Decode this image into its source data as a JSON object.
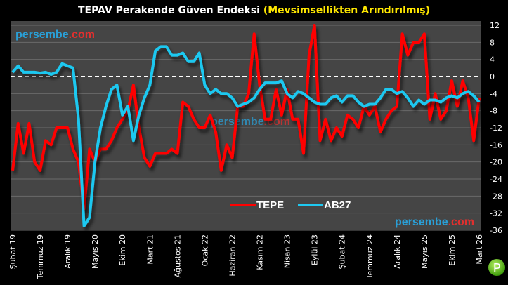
{
  "chart_data": {
    "type": "line",
    "title": "TEPAV Perakende Güven Endeksi",
    "subtitle": "(Mevsimsellikten Arındırılmış)",
    "x_tick_labels": [
      "Şubat 19",
      "Temmuz 19",
      "Aralık 19",
      "Mayıs 20",
      "Ekim 20",
      "Mart 21",
      "Ağustos 21",
      "Ocak 22",
      "Haziran 22",
      "Kasım 22",
      "Nisan 23",
      "Eylül 23",
      "Şubat 24",
      "Temmuz 24",
      "Aralık 24",
      "Mayıs 25",
      "Ekim 25",
      "Mart 26"
    ],
    "x_range": [
      "Şubat 19",
      "Mart 26"
    ],
    "ylim": [
      -36,
      12
    ],
    "y_ticks": [
      12,
      8,
      4,
      0,
      -4,
      -8,
      -12,
      -16,
      -20,
      -24,
      -28,
      -32,
      -36
    ],
    "y_axis_side": "right",
    "grid": true,
    "reference_line": 0,
    "legend_placement": "bottom-center",
    "series": [
      {
        "name": "TEPE",
        "color": "#ff0000",
        "values": [
          -22,
          -11,
          -18,
          -11,
          -20,
          -22,
          -15,
          -16,
          -12,
          -12,
          -12,
          -17,
          -20,
          -31,
          -17,
          -20,
          -17,
          -17,
          -15,
          -12,
          -10,
          -8,
          -2,
          -12,
          -19,
          -21,
          -18,
          -18,
          -18,
          -17,
          -18,
          -6,
          -7,
          -10,
          -12,
          -12,
          -9,
          -13,
          -22,
          -16,
          -19,
          -7,
          -7,
          -4,
          10,
          -2,
          -10,
          -10,
          -3,
          -9,
          -3,
          -10,
          -10,
          -18,
          5,
          12,
          -15,
          -10,
          -15,
          -12,
          -14,
          -9,
          -10,
          -12,
          -7,
          -9,
          -7,
          -13,
          -10,
          -8,
          -7,
          10,
          5,
          8,
          8,
          10,
          -10,
          -4,
          -10,
          -8,
          -1,
          -7,
          -1,
          -5,
          -15,
          -5
        ]
      },
      {
        "name": "AB27",
        "color": "#1ec8f0",
        "values": [
          1,
          2.5,
          1,
          1,
          1,
          0.8,
          1,
          0.5,
          1,
          3,
          2.5,
          2,
          -10,
          -35,
          -33,
          -20,
          -12,
          -7,
          -3,
          -2,
          -9,
          -7,
          -15,
          -9,
          -5,
          -2,
          6,
          7,
          7,
          5,
          5,
          5.5,
          3.5,
          3.5,
          5.5,
          -2,
          -4,
          -3,
          -4,
          -4,
          -5,
          -7,
          -6.5,
          -6,
          -5,
          -3,
          -1.5,
          -1.5,
          -1.5,
          -1,
          -4,
          -5,
          -3.5,
          -4,
          -5,
          -6,
          -6.5,
          -6.5,
          -5,
          -4.5,
          -6,
          -4.5,
          -4.5,
          -6,
          -7,
          -6.5,
          -6.5,
          -5,
          -3,
          -3,
          -4,
          -3.5,
          -5,
          -7,
          -5.5,
          -6.5,
          -5.5,
          -5.5,
          -6,
          -5,
          -4.5,
          -5,
          -4,
          -3.5,
          -4.5,
          -6
        ]
      }
    ]
  },
  "watermark": {
    "part1": "persembe",
    "part2": ".com",
    "color1": "#2a9fd6",
    "color2": "#e0302f"
  },
  "badge": "P"
}
